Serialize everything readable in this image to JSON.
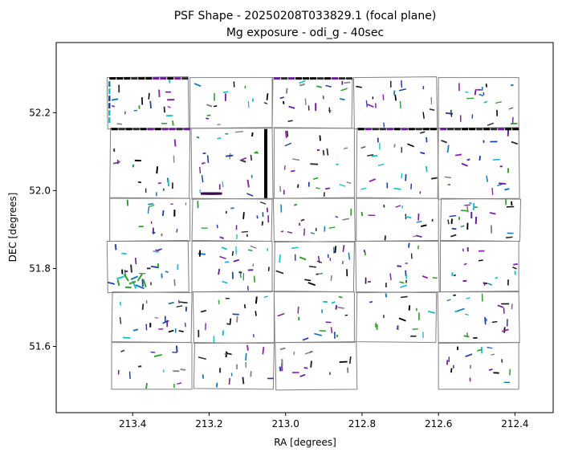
{
  "chart_data": {
    "type": "scatter",
    "title": "PSF Shape - 20250208T033829.1 (focal plane)",
    "subtitle": "Mg exposure - odi_g - 40sec",
    "xlabel": "RA [degrees]",
    "ylabel": "DEC [degrees]",
    "xlim": [
      213.6,
      212.3
    ],
    "ylim": [
      51.43,
      52.38
    ],
    "x_ticks": [
      213.4,
      213.2,
      213.0,
      212.8,
      212.6,
      212.4
    ],
    "x_tick_labels": [
      "213.4",
      "213.2",
      "213.0",
      "212.8",
      "212.6",
      "212.4"
    ],
    "y_ticks": [
      51.6,
      51.8,
      52.0,
      52.2
    ],
    "y_tick_labels": [
      "51.6",
      "51.8",
      "52.0",
      "52.2"
    ],
    "grid": false,
    "detector_outline_color": "#808080",
    "ccd_chips": [
      {
        "row": 0,
        "ra": [
          213.465,
          213.255
        ],
        "dec": [
          52.16,
          52.29
        ],
        "bad_columns": [
          "top-edge",
          "left-edge"
        ]
      },
      {
        "row": 0,
        "ra": [
          213.25,
          213.035
        ],
        "dec": [
          52.16,
          52.29
        ]
      },
      {
        "row": 0,
        "ra": [
          213.035,
          212.825
        ],
        "dec": [
          52.16,
          52.29
        ],
        "bad_columns": [
          "top-edge"
        ]
      },
      {
        "row": 0,
        "ra": [
          212.82,
          212.605
        ],
        "dec": [
          52.16,
          52.29
        ]
      },
      {
        "row": 0,
        "ra": [
          212.6,
          212.39
        ],
        "dec": [
          52.16,
          52.29
        ]
      },
      {
        "row": 1,
        "ra": [
          213.46,
          213.25
        ],
        "dec": [
          51.98,
          52.16
        ],
        "bad_columns": [
          "top-edge"
        ]
      },
      {
        "row": 1,
        "ra": [
          213.245,
          213.035
        ],
        "dec": [
          51.98,
          52.16
        ],
        "bad_columns": [
          "right-edge",
          "bottom-blob"
        ]
      },
      {
        "row": 1,
        "ra": [
          213.03,
          212.82
        ],
        "dec": [
          51.98,
          52.16
        ]
      },
      {
        "row": 1,
        "ra": [
          212.815,
          212.6
        ],
        "dec": [
          51.98,
          52.16
        ],
        "bad_columns": [
          "top-edge"
        ]
      },
      {
        "row": 1,
        "ra": [
          212.6,
          212.39
        ],
        "dec": [
          51.98,
          52.16
        ],
        "bad_columns": [
          "top-edge"
        ]
      },
      {
        "row": 2,
        "ra": [
          213.46,
          213.25
        ],
        "dec": [
          51.87,
          51.98
        ]
      },
      {
        "row": 2,
        "ra": [
          213.245,
          213.035
        ],
        "dec": [
          51.87,
          51.98
        ]
      },
      {
        "row": 2,
        "ra": [
          213.03,
          212.82
        ],
        "dec": [
          51.87,
          51.98
        ]
      },
      {
        "row": 2,
        "ra": [
          212.815,
          212.6
        ],
        "dec": [
          51.87,
          51.98
        ]
      },
      {
        "row": 2,
        "ra": [
          212.595,
          212.385
        ],
        "dec": [
          51.87,
          51.98
        ]
      },
      {
        "row": 3,
        "ra": [
          213.465,
          213.255
        ],
        "dec": [
          51.74,
          51.87
        ],
        "bad_columns": [
          "lower-left-cluster"
        ]
      },
      {
        "row": 3,
        "ra": [
          213.245,
          213.035
        ],
        "dec": [
          51.74,
          51.87
        ]
      },
      {
        "row": 3,
        "ra": [
          213.03,
          212.82
        ],
        "dec": [
          51.74,
          51.87
        ]
      },
      {
        "row": 3,
        "ra": [
          212.815,
          212.6
        ],
        "dec": [
          51.74,
          51.87
        ]
      },
      {
        "row": 3,
        "ra": [
          212.595,
          212.39
        ],
        "dec": [
          51.74,
          51.87
        ]
      },
      {
        "row": 4,
        "ra": [
          213.455,
          213.245
        ],
        "dec": [
          51.61,
          51.74
        ]
      },
      {
        "row": 4,
        "ra": [
          213.24,
          213.03
        ],
        "dec": [
          51.61,
          51.74
        ]
      },
      {
        "row": 4,
        "ra": [
          213.03,
          212.82
        ],
        "dec": [
          51.61,
          51.74
        ]
      },
      {
        "row": 4,
        "ra": [
          212.815,
          212.605
        ],
        "dec": [
          51.61,
          51.74
        ]
      },
      {
        "row": 4,
        "ra": [
          212.6,
          212.39
        ],
        "dec": [
          51.61,
          51.74
        ]
      },
      {
        "row": 5,
        "ra": [
          213.455,
          213.245
        ],
        "dec": [
          51.49,
          51.61
        ]
      },
      {
        "row": 5,
        "ra": [
          213.24,
          213.03
        ],
        "dec": [
          51.49,
          51.61
        ]
      },
      {
        "row": 5,
        "ra": [
          213.025,
          212.815
        ],
        "dec": [
          51.49,
          51.61
        ]
      },
      {
        "row": 5,
        "ra": [
          212.6,
          212.39
        ],
        "dec": [
          51.49,
          51.61
        ]
      }
    ],
    "marker_style": "short line segment; orientation = PSF elongation angle, length = ellipticity, color = PSF size",
    "palette": [
      "#000000",
      "#2b2b2b",
      "#6a1b9a",
      "#8e24aa",
      "#1f3fa8",
      "#1f77b4",
      "#17becf",
      "#2ca02c",
      "#7f7f7f"
    ]
  }
}
